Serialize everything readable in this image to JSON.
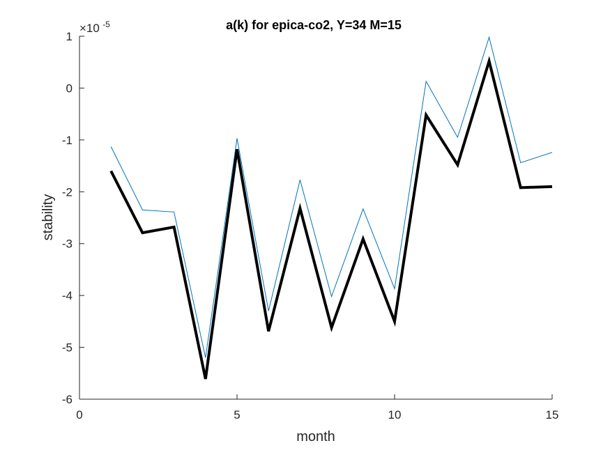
{
  "chart_data": {
    "type": "line",
    "title": "a(k) for epica-co2, Y=34 M=15",
    "xlabel": "month",
    "ylabel": "stability",
    "y_multiplier": {
      "base": "×10",
      "exponent": "-5"
    },
    "xlim": [
      0,
      15
    ],
    "ylim": [
      -6,
      1
    ],
    "x_ticks": [
      0,
      5,
      10,
      15
    ],
    "y_ticks": [
      1,
      0,
      -1,
      -2,
      -3,
      -4,
      -5,
      -6
    ],
    "grid": false,
    "x": [
      1,
      2,
      3,
      4,
      5,
      6,
      7,
      8,
      9,
      10,
      11,
      12,
      13,
      14,
      15
    ],
    "series": [
      {
        "color": "#0072BD",
        "style": "thin",
        "values": [
          -1.13,
          -2.35,
          -2.39,
          -5.2,
          -0.97,
          -4.3,
          -1.77,
          -4.02,
          -2.33,
          -3.87,
          0.13,
          -0.95,
          0.98,
          -1.44,
          -1.24
        ]
      },
      {
        "color": "#000000",
        "style": "thick",
        "values": [
          -1.6,
          -2.79,
          -2.68,
          -5.61,
          -1.18,
          -4.69,
          -2.32,
          -4.62,
          -2.91,
          -4.5,
          -0.52,
          -1.48,
          0.52,
          -1.92,
          -1.9
        ]
      }
    ]
  }
}
